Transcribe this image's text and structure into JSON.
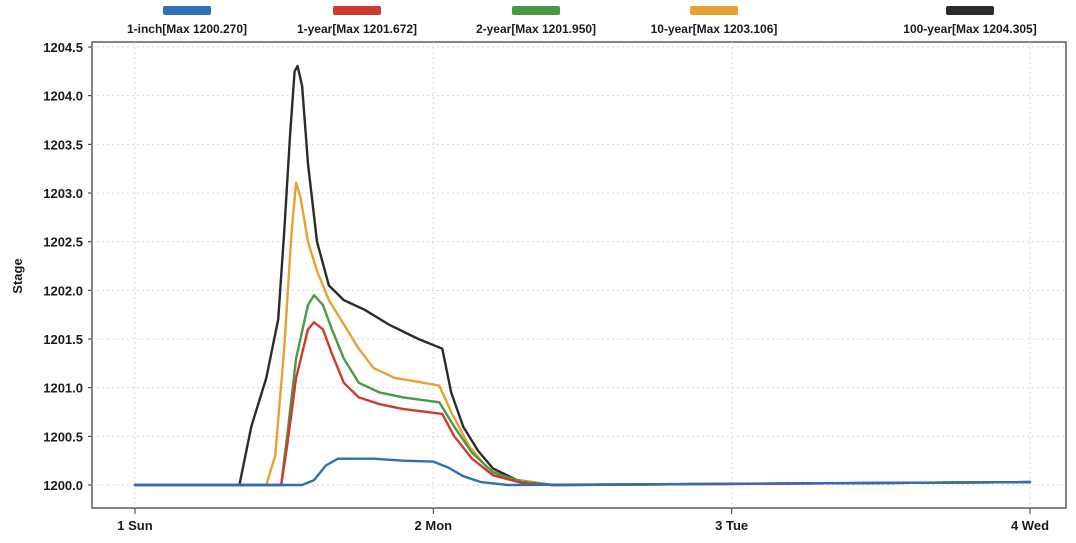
{
  "chart_data": {
    "type": "line",
    "title": "",
    "xlabel": "",
    "ylabel": "Stage",
    "ylim": [
      1199.8,
      1204.5
    ],
    "yticks": [
      "1200.0",
      "1200.5",
      "1201.0",
      "1201.5",
      "1202.0",
      "1202.5",
      "1203.0",
      "1203.5",
      "1204.0",
      "1204.5"
    ],
    "xlim": [
      1.0,
      4.0
    ],
    "xticks": [
      {
        "x": 1.0,
        "label": "1 Sun"
      },
      {
        "x": 2.0,
        "label": "2 Mon"
      },
      {
        "x": 3.0,
        "label": "3 Tue"
      },
      {
        "x": 4.0,
        "label": "4 Wed"
      }
    ],
    "grid": true,
    "legend_position": "top",
    "series": [
      {
        "name": "100-year[Max 1204.305]",
        "color": "#2b2b2b",
        "points": [
          [
            1.0,
            1200.0
          ],
          [
            1.35,
            1200.0
          ],
          [
            1.39,
            1200.6
          ],
          [
            1.44,
            1201.1
          ],
          [
            1.48,
            1201.7
          ],
          [
            1.5,
            1202.6
          ],
          [
            1.52,
            1203.6
          ],
          [
            1.535,
            1204.25
          ],
          [
            1.545,
            1204.305
          ],
          [
            1.56,
            1204.1
          ],
          [
            1.58,
            1203.3
          ],
          [
            1.61,
            1202.5
          ],
          [
            1.65,
            1202.05
          ],
          [
            1.7,
            1201.9
          ],
          [
            1.77,
            1201.8
          ],
          [
            1.85,
            1201.65
          ],
          [
            1.95,
            1201.5
          ],
          [
            2.03,
            1201.4
          ],
          [
            2.06,
            1200.95
          ],
          [
            2.1,
            1200.6
          ],
          [
            2.15,
            1200.35
          ],
          [
            2.2,
            1200.17
          ],
          [
            2.28,
            1200.05
          ],
          [
            2.4,
            1200.0
          ],
          [
            4.0,
            1200.03
          ]
        ]
      },
      {
        "name": "10-year[Max 1203.106]",
        "color": "#e8a033",
        "points": [
          [
            1.0,
            1200.0
          ],
          [
            1.35,
            1200.0
          ],
          [
            1.44,
            1200.0
          ],
          [
            1.47,
            1200.3
          ],
          [
            1.5,
            1201.4
          ],
          [
            1.525,
            1202.6
          ],
          [
            1.54,
            1203.106
          ],
          [
            1.555,
            1202.95
          ],
          [
            1.58,
            1202.5
          ],
          [
            1.61,
            1202.2
          ],
          [
            1.65,
            1201.9
          ],
          [
            1.7,
            1201.65
          ],
          [
            1.75,
            1201.4
          ],
          [
            1.8,
            1201.2
          ],
          [
            1.87,
            1201.1
          ],
          [
            1.95,
            1201.06
          ],
          [
            2.02,
            1201.02
          ],
          [
            2.06,
            1200.75
          ],
          [
            2.12,
            1200.4
          ],
          [
            2.18,
            1200.18
          ],
          [
            2.25,
            1200.06
          ],
          [
            2.4,
            1200.0
          ],
          [
            4.0,
            1200.03
          ]
        ]
      },
      {
        "name": "2-year[Max 1201.950]",
        "color": "#4a9a44",
        "points": [
          [
            1.0,
            1200.0
          ],
          [
            1.49,
            1200.0
          ],
          [
            1.51,
            1200.5
          ],
          [
            1.54,
            1201.3
          ],
          [
            1.58,
            1201.85
          ],
          [
            1.6,
            1201.95
          ],
          [
            1.63,
            1201.85
          ],
          [
            1.66,
            1201.6
          ],
          [
            1.7,
            1201.3
          ],
          [
            1.75,
            1201.05
          ],
          [
            1.82,
            1200.95
          ],
          [
            1.9,
            1200.9
          ],
          [
            2.02,
            1200.85
          ],
          [
            2.07,
            1200.6
          ],
          [
            2.13,
            1200.33
          ],
          [
            2.2,
            1200.13
          ],
          [
            2.3,
            1200.03
          ],
          [
            2.4,
            1200.0
          ],
          [
            4.0,
            1200.03
          ]
        ]
      },
      {
        "name": "1-year[Max 1201.672]",
        "color": "#cc3b2e",
        "points": [
          [
            1.0,
            1200.0
          ],
          [
            1.49,
            1200.0
          ],
          [
            1.51,
            1200.4
          ],
          [
            1.54,
            1201.1
          ],
          [
            1.58,
            1201.6
          ],
          [
            1.6,
            1201.672
          ],
          [
            1.63,
            1201.6
          ],
          [
            1.66,
            1201.35
          ],
          [
            1.7,
            1201.05
          ],
          [
            1.75,
            1200.9
          ],
          [
            1.82,
            1200.83
          ],
          [
            1.9,
            1200.78
          ],
          [
            2.03,
            1200.73
          ],
          [
            2.07,
            1200.5
          ],
          [
            2.13,
            1200.27
          ],
          [
            2.2,
            1200.1
          ],
          [
            2.3,
            1200.02
          ],
          [
            2.4,
            1200.0
          ],
          [
            4.0,
            1200.03
          ]
        ]
      },
      {
        "name": "1-inch[Max 1200.270]",
        "color": "#2f6fb5",
        "points": [
          [
            1.0,
            1200.0
          ],
          [
            1.56,
            1200.0
          ],
          [
            1.6,
            1200.05
          ],
          [
            1.64,
            1200.2
          ],
          [
            1.68,
            1200.27
          ],
          [
            1.8,
            1200.27
          ],
          [
            1.9,
            1200.25
          ],
          [
            2.0,
            1200.24
          ],
          [
            2.05,
            1200.18
          ],
          [
            2.1,
            1200.09
          ],
          [
            2.16,
            1200.03
          ],
          [
            2.25,
            1200.0
          ],
          [
            4.0,
            1200.03
          ]
        ]
      }
    ],
    "legend": [
      {
        "label": "1-inch[Max 1200.270]",
        "color": "#2f6fb5"
      },
      {
        "label": "1-year[Max 1201.672]",
        "color": "#cc3b2e"
      },
      {
        "label": "2-year[Max 1201.950]",
        "color": "#4a9a44"
      },
      {
        "label": "10-year[Max 1203.106]",
        "color": "#e8a033"
      },
      {
        "label": "100-year[Max 1204.305]",
        "color": "#2b2b2b"
      }
    ]
  }
}
